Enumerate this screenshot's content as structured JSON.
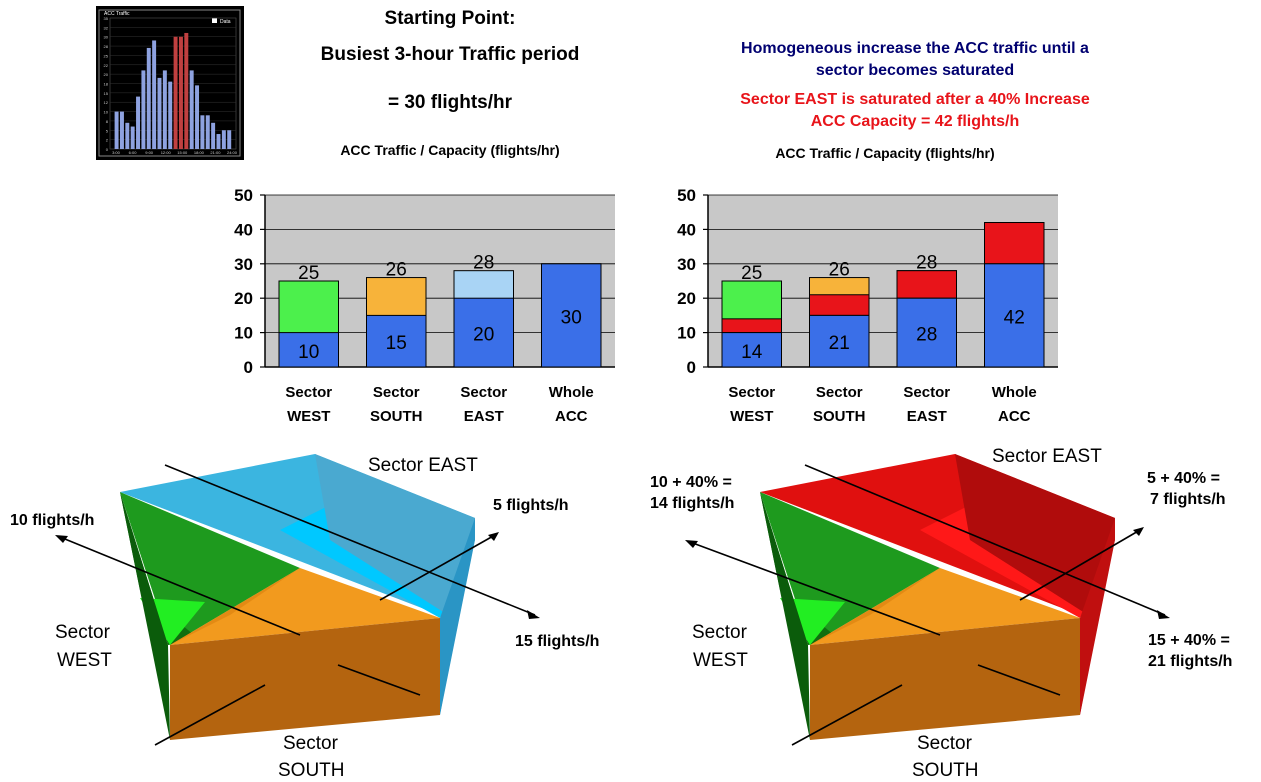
{
  "left_panel": {
    "title_line1": "Starting Point:",
    "title_line2": "Busiest 3-hour Traffic period",
    "rate": "= 30 flights/hr",
    "chart_caption": "ACC Traffic / Capacity (flights/hr)"
  },
  "right_panel": {
    "line1": "Homogeneous increase the ACC traffic until a",
    "line2": "sector becomes saturated",
    "line3": "Sector EAST is saturated after a 40% Increase",
    "line4": "ACC Capacity = 42 flights/h",
    "chart_caption": "ACC Traffic / Capacity (flights/hr)"
  },
  "thumbnail": {
    "title": "ACC Traffic",
    "legend": "Data",
    "ytick_labels": [
      "35",
      "32",
      "30",
      "28",
      "25",
      "22",
      "20",
      "18",
      "15",
      "12",
      "10",
      "8",
      "5",
      "2",
      "0"
    ],
    "xtick_labels": [
      "3:00",
      "6:00",
      "9:00",
      "12:00",
      "15:00",
      "18:00",
      "21:00",
      "24:00"
    ]
  },
  "colors": {
    "blue": "#3a6fe8",
    "green": "#4cf04c",
    "orange": "#f7b33a",
    "lightblue": "#a9d4f5",
    "red": "#e8141a",
    "navy": "#000070",
    "plot_bg": "#c8c8c8"
  },
  "chart_data": [
    {
      "type": "bar",
      "name": "left",
      "categories": [
        [
          "Sector",
          "WEST"
        ],
        [
          "Sector",
          "SOUTH"
        ],
        [
          "Sector",
          "EAST"
        ],
        [
          "Whole",
          "ACC"
        ]
      ],
      "ylim": [
        0,
        50
      ],
      "yticks": [
        0,
        10,
        20,
        30,
        40,
        50
      ],
      "grid": true,
      "bars": [
        {
          "traffic": 10,
          "capacity": 25,
          "cap_color": "green",
          "traffic_label": "10",
          "cap_label": "25"
        },
        {
          "traffic": 15,
          "capacity": 26,
          "cap_color": "orange",
          "traffic_label": "15",
          "cap_label": "26"
        },
        {
          "traffic": 20,
          "capacity": 28,
          "cap_color": "lightblue",
          "traffic_label": "20",
          "cap_label": "28"
        },
        {
          "traffic": 30,
          "capacity": 30,
          "cap_color": "blue",
          "traffic_label": "30",
          "cap_label": ""
        }
      ]
    },
    {
      "type": "bar",
      "name": "right",
      "categories": [
        [
          "Sector",
          "WEST"
        ],
        [
          "Sector",
          "SOUTH"
        ],
        [
          "Sector",
          "EAST"
        ],
        [
          "Whole",
          "ACC"
        ]
      ],
      "ylim": [
        0,
        50
      ],
      "yticks": [
        0,
        10,
        20,
        30,
        40,
        50
      ],
      "grid": true,
      "bars": [
        {
          "base": 10,
          "traffic": 14,
          "capacity": 25,
          "cap_color": "green",
          "traffic_label": "14",
          "cap_label": "25"
        },
        {
          "base": 15,
          "traffic": 21,
          "capacity": 26,
          "cap_color": "orange",
          "traffic_label": "21",
          "cap_label": "26"
        },
        {
          "base": 20,
          "traffic": 28,
          "capacity": 28,
          "cap_color": "red",
          "traffic_label": "28",
          "cap_label": "28"
        },
        {
          "base": 30,
          "traffic": 42,
          "capacity": 42,
          "cap_color": "red",
          "traffic_label": "42",
          "cap_label": ""
        }
      ]
    },
    {
      "type": "bar",
      "name": "thumbnail-hourly-traffic",
      "ylim": [
        0,
        35
      ],
      "values": [
        10,
        10,
        7,
        6,
        14,
        21,
        27,
        29,
        19,
        21,
        18,
        30,
        30,
        31,
        21,
        17,
        9,
        9,
        7,
        4,
        5,
        5
      ],
      "highlight_indices": [
        11,
        12,
        13
      ]
    }
  ],
  "diagram_left": {
    "sector_east": "Sector EAST",
    "flow_10": "10 flights/h",
    "flow_5": "5 flights/h",
    "flow_15": "15 flights/h",
    "sector_west_1": "Sector",
    "sector_west_2": "WEST",
    "sector_south_1": "Sector",
    "sector_south_2": "SOUTH"
  },
  "diagram_right": {
    "sector_east": "Sector EAST",
    "flow_10_a": "10 + 40% =",
    "flow_10_b": "14 flights/h",
    "flow_5_a": "5 + 40% =",
    "flow_5_b": "7 flights/h",
    "flow_15_a": "15 + 40% =",
    "flow_15_b": "21 flights/h",
    "sector_west_1": "Sector",
    "sector_west_2": "WEST",
    "sector_south_1": "Sector",
    "sector_south_2": "SOUTH"
  }
}
